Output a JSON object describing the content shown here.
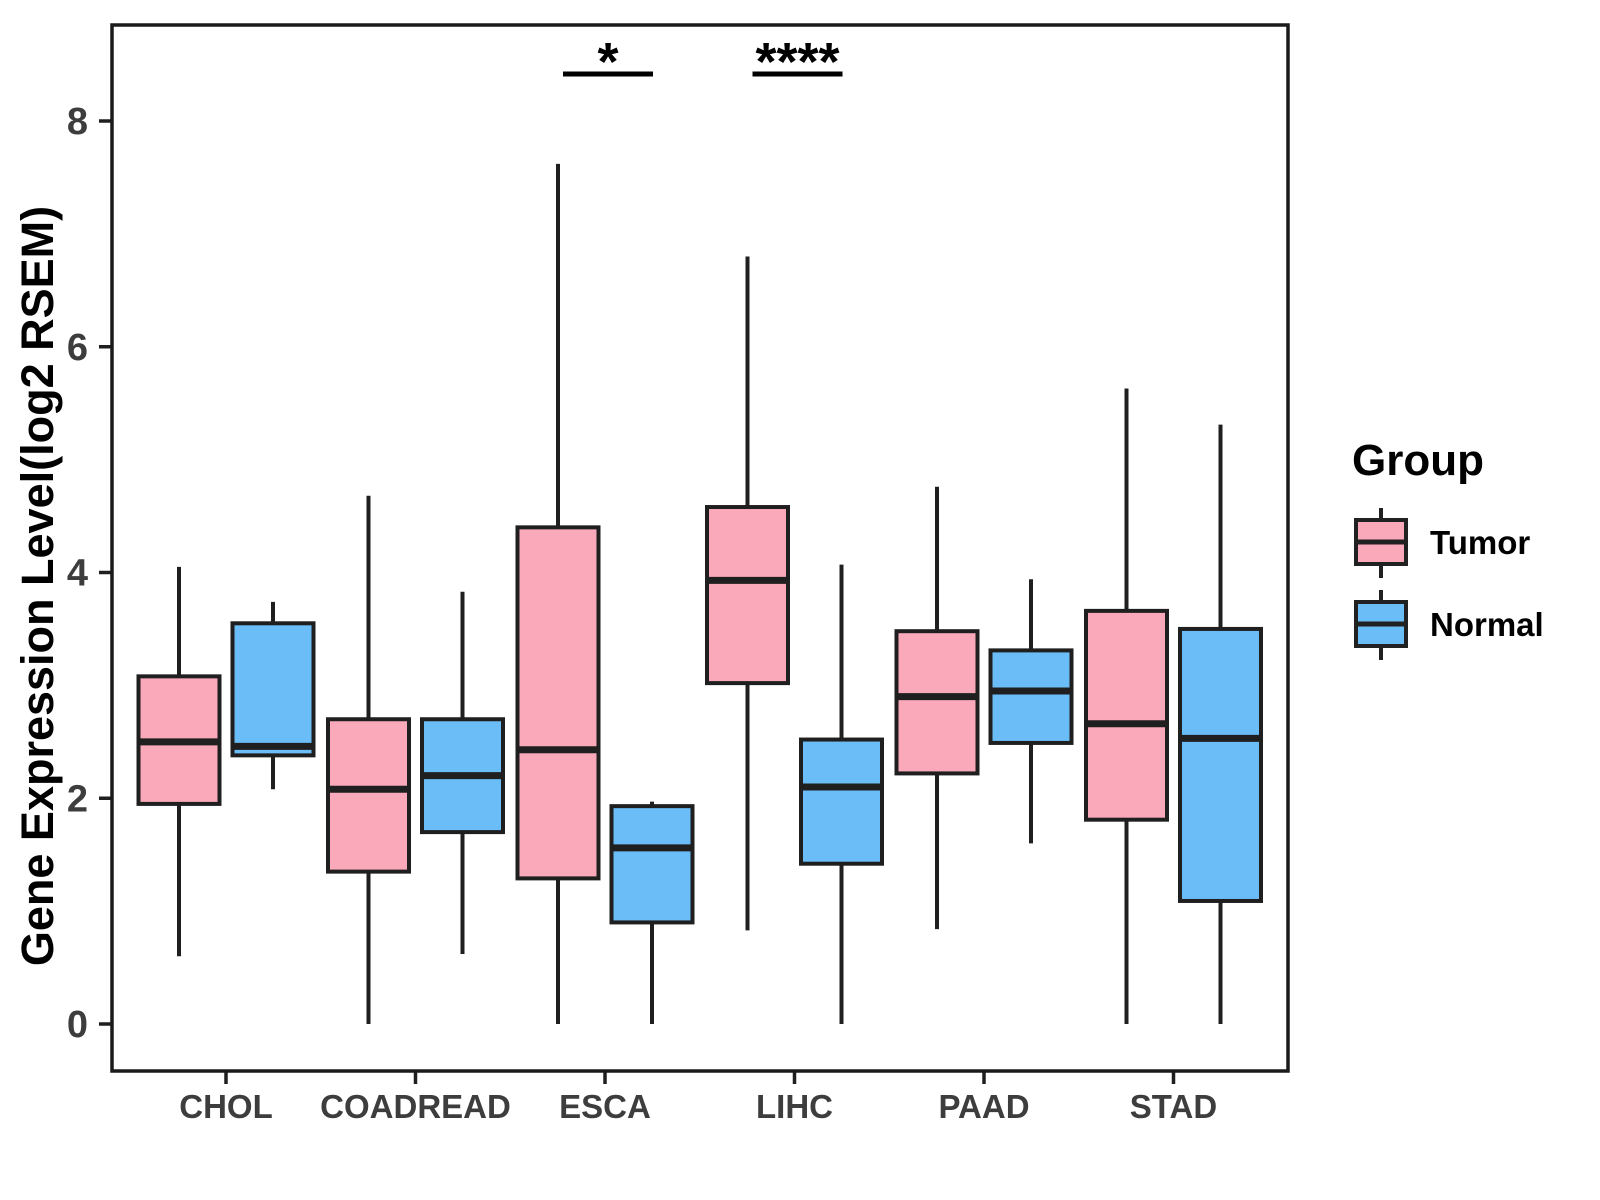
{
  "chart_data": {
    "type": "boxplot",
    "title": "",
    "xlabel": "",
    "ylabel": "Gene Expression Level(log2 RSEM)",
    "yticks": [
      0,
      2,
      4,
      6,
      8
    ],
    "ylim": [
      -0.4,
      8.85
    ],
    "grid": false,
    "legend_title": "Group",
    "legend_position": "right",
    "categories": [
      "CHOL",
      "COADREAD",
      "ESCA",
      "LIHC",
      "PAAD",
      "STAD"
    ],
    "series": [
      {
        "name": "Tumor",
        "color": "#F9A9BA",
        "stats": [
          {
            "min": 0.6,
            "q1": 1.95,
            "median": 2.5,
            "q3": 3.08,
            "max": 4.05
          },
          {
            "min": 0.0,
            "q1": 1.35,
            "median": 2.08,
            "q3": 2.7,
            "max": 4.68
          },
          {
            "min": 0.0,
            "q1": 1.29,
            "median": 2.43,
            "q3": 4.4,
            "max": 7.62
          },
          {
            "min": 0.83,
            "q1": 3.02,
            "median": 3.93,
            "q3": 4.58,
            "max": 6.8
          },
          {
            "min": 0.84,
            "q1": 2.22,
            "median": 2.9,
            "q3": 3.48,
            "max": 4.76
          },
          {
            "min": 0.0,
            "q1": 1.81,
            "median": 2.66,
            "q3": 3.66,
            "max": 5.63
          }
        ]
      },
      {
        "name": "Normal",
        "color": "#6ABDF6",
        "stats": [
          {
            "min": 2.08,
            "q1": 2.38,
            "median": 2.46,
            "q3": 3.55,
            "max": 3.74
          },
          {
            "min": 0.62,
            "q1": 1.7,
            "median": 2.2,
            "q3": 2.7,
            "max": 3.83
          },
          {
            "min": 0.0,
            "q1": 0.9,
            "median": 1.56,
            "q3": 1.93,
            "max": 1.97
          },
          {
            "min": 0.0,
            "q1": 1.42,
            "median": 2.1,
            "q3": 2.52,
            "max": 4.07
          },
          {
            "min": 1.6,
            "q1": 2.49,
            "median": 2.95,
            "q3": 3.31,
            "max": 3.94
          },
          {
            "min": 0.0,
            "q1": 1.09,
            "median": 2.53,
            "q3": 3.5,
            "max": 5.31
          }
        ]
      }
    ],
    "significance": [
      {
        "category": "ESCA",
        "label": "*"
      },
      {
        "category": "LIHC",
        "label": "****"
      }
    ]
  }
}
